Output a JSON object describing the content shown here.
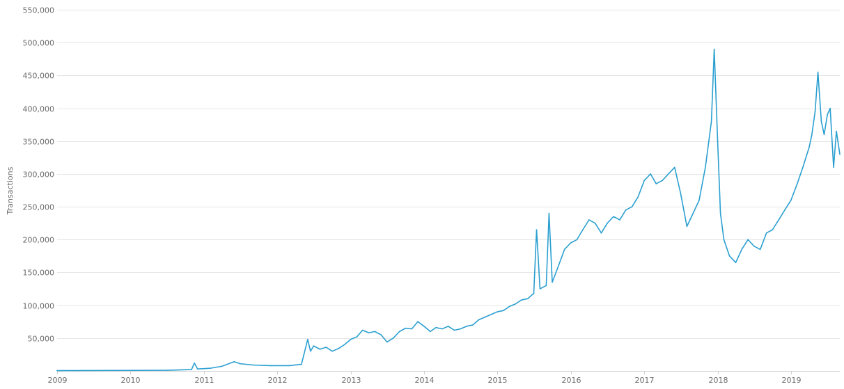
{
  "chart_data": {
    "type": "line",
    "title": "",
    "xlabel": "",
    "ylabel": "Transactions",
    "x_tick_labels": [
      "2009",
      "2010",
      "2011",
      "2012",
      "2013",
      "2014",
      "2015",
      "2016",
      "2017",
      "2018",
      "2019"
    ],
    "y_tick_labels": [
      "50,000",
      "100,000",
      "150,000",
      "200,000",
      "250,000",
      "300,000",
      "350,000",
      "400,000",
      "450,000",
      "500,000",
      "550,000"
    ],
    "xlim": [
      "2009-01-01",
      "2019-09-01"
    ],
    "ylim": [
      0,
      550000
    ],
    "grid": "horizontal",
    "line_color": "#2a9fd0",
    "series": [
      {
        "x": [
          "2009-01-01",
          "2009-07-01",
          "2010-01-01",
          "2010-07-01",
          "2010-11-01",
          "2010-11-15",
          "2010-12-01",
          "2011-02-01",
          "2011-04-01",
          "2011-06-01",
          "2011-07-01",
          "2011-09-01",
          "2011-12-01",
          "2012-03-01",
          "2012-05-01",
          "2012-06-01",
          "2012-06-15",
          "2012-07-01",
          "2012-08-01",
          "2012-09-01",
          "2012-10-01",
          "2012-11-01",
          "2012-12-01",
          "2013-01-01",
          "2013-02-01",
          "2013-03-01",
          "2013-04-01",
          "2013-05-01",
          "2013-06-01",
          "2013-07-01",
          "2013-08-01",
          "2013-09-01",
          "2013-10-01",
          "2013-11-01",
          "2013-12-01",
          "2014-01-01",
          "2014-02-01",
          "2014-03-01",
          "2014-04-01",
          "2014-05-01",
          "2014-06-01",
          "2014-07-01",
          "2014-08-01",
          "2014-09-01",
          "2014-10-01",
          "2014-11-01",
          "2014-12-01",
          "2015-01-01",
          "2015-02-01",
          "2015-03-01",
          "2015-04-01",
          "2015-05-01",
          "2015-06-01",
          "2015-07-01",
          "2015-07-15",
          "2015-08-01",
          "2015-09-01",
          "2015-09-15",
          "2015-10-01",
          "2015-11-01",
          "2015-12-01",
          "2016-01-01",
          "2016-02-01",
          "2016-03-01",
          "2016-04-01",
          "2016-05-01",
          "2016-06-01",
          "2016-07-01",
          "2016-08-01",
          "2016-09-01",
          "2016-10-01",
          "2016-11-01",
          "2016-12-01",
          "2017-01-01",
          "2017-02-01",
          "2017-03-01",
          "2017-04-01",
          "2017-05-01",
          "2017-06-01",
          "2017-07-01",
          "2017-08-01",
          "2017-09-01",
          "2017-10-01",
          "2017-11-01",
          "2017-12-01",
          "2017-12-15",
          "2018-01-01",
          "2018-01-15",
          "2018-02-01",
          "2018-03-01",
          "2018-04-01",
          "2018-05-01",
          "2018-06-01",
          "2018-07-01",
          "2018-08-01",
          "2018-09-01",
          "2018-10-01",
          "2018-11-01",
          "2018-12-01",
          "2019-01-01",
          "2019-02-01",
          "2019-03-01",
          "2019-04-01",
          "2019-04-15",
          "2019-05-01",
          "2019-05-15",
          "2019-06-01",
          "2019-06-15",
          "2019-07-01",
          "2019-07-15",
          "2019-08-01",
          "2019-08-15",
          "2019-09-01"
        ],
        "y": [
          500,
          600,
          800,
          1000,
          2000,
          12000,
          3000,
          4000,
          7000,
          14000,
          11000,
          9000,
          8000,
          8000,
          10000,
          48000,
          30000,
          38000,
          33000,
          36000,
          30000,
          34000,
          40000,
          48000,
          52000,
          62000,
          58000,
          60000,
          55000,
          44000,
          50000,
          60000,
          65000,
          64000,
          75000,
          68000,
          60000,
          66000,
          64000,
          68000,
          62000,
          64000,
          68000,
          70000,
          78000,
          82000,
          86000,
          90000,
          92000,
          98000,
          102000,
          108000,
          110000,
          118000,
          215000,
          125000,
          130000,
          240000,
          135000,
          160000,
          185000,
          195000,
          200000,
          215000,
          230000,
          225000,
          210000,
          225000,
          235000,
          230000,
          245000,
          250000,
          265000,
          290000,
          300000,
          285000,
          290000,
          300000,
          310000,
          270000,
          220000,
          240000,
          260000,
          310000,
          380000,
          490000,
          350000,
          240000,
          200000,
          175000,
          165000,
          185000,
          200000,
          190000,
          185000,
          210000,
          215000,
          230000,
          245000,
          260000,
          285000,
          310000,
          340000,
          360000,
          395000,
          455000,
          380000,
          360000,
          390000,
          400000,
          310000,
          365000,
          330000
        ]
      }
    ]
  }
}
